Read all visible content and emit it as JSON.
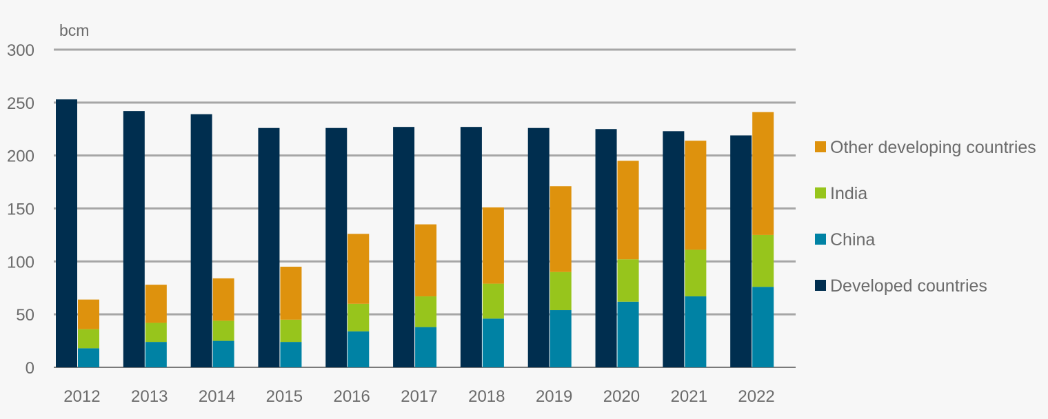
{
  "chart_data": {
    "type": "bar",
    "stacked_groups": true,
    "unit": "bcm",
    "ylim": [
      0,
      300
    ],
    "yticks": [
      0,
      50,
      100,
      150,
      200,
      250,
      300
    ],
    "grid": true,
    "legend_position": "right",
    "categories": [
      "2012",
      "2013",
      "2014",
      "2015",
      "2016",
      "2017",
      "2018",
      "2019",
      "2020",
      "2021",
      "2022"
    ],
    "series": [
      {
        "name": "Developed countries",
        "group": "developed",
        "color": "#002e4f",
        "values": [
          253,
          242,
          239,
          226,
          226,
          227,
          227,
          226,
          225,
          223,
          219
        ]
      },
      {
        "name": "China",
        "group": "developing",
        "color": "#0082a4",
        "values": [
          18,
          24,
          25,
          24,
          34,
          38,
          46,
          54,
          62,
          67,
          76
        ]
      },
      {
        "name": "India",
        "group": "developing",
        "color": "#97c51c",
        "values": [
          18,
          18,
          19,
          21,
          26,
          29,
          33,
          36,
          40,
          44,
          49
        ]
      },
      {
        "name": "Other developing countries",
        "group": "developing",
        "color": "#de920d",
        "values": [
          28,
          36,
          40,
          50,
          66,
          68,
          72,
          81,
          93,
          103,
          116
        ]
      }
    ],
    "legend_order": [
      "Other developing countries",
      "India",
      "China",
      "Developed countries"
    ]
  }
}
